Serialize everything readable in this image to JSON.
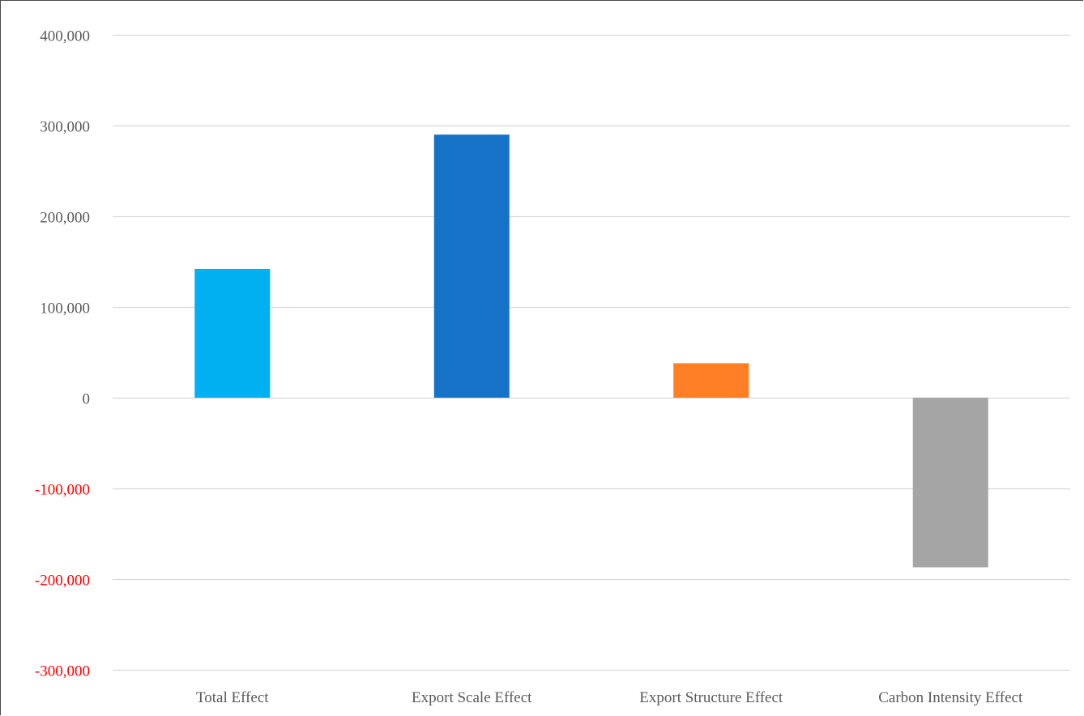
{
  "chart_data": {
    "type": "bar",
    "title": "",
    "xlabel": "",
    "ylabel": "",
    "categories": [
      "Total Effect",
      "Export Scale Effect",
      "Export Structure Effect",
      "Carbon Intensity Effect"
    ],
    "values": [
      142000,
      290000,
      38000,
      -187000
    ],
    "colors": [
      "#00B0F0",
      "#1572C7",
      "#FF7F27",
      "#A5A5A5"
    ],
    "ylim": [
      -300000,
      400000
    ],
    "y_ticks": [
      {
        "value": 400000,
        "label": "400,000"
      },
      {
        "value": 300000,
        "label": "300,000"
      },
      {
        "value": 200000,
        "label": "200,000"
      },
      {
        "value": 100000,
        "label": "100,000"
      },
      {
        "value": 0,
        "label": "0"
      },
      {
        "value": -100000,
        "label": "-100,000"
      },
      {
        "value": -200000,
        "label": "-200,000"
      },
      {
        "value": -300000,
        "label": "-300,000"
      }
    ],
    "tick_label_color_positive": "#595959",
    "tick_label_color_negative": "#FF0000",
    "gridline_color": "#D9D9D9",
    "grid": true,
    "legend": "none"
  }
}
